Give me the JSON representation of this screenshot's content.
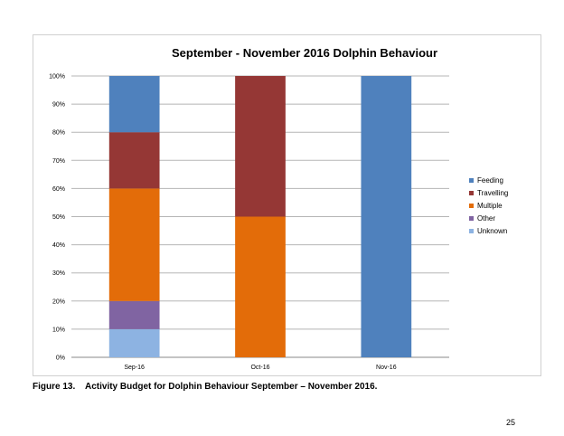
{
  "chart_data": {
    "type": "bar",
    "stacked": true,
    "title": "September - November 2016 Dolphin Behaviour",
    "categories": [
      "Sep-16",
      "Oct-16",
      "Nov-16"
    ],
    "series": [
      {
        "name": "Unknown",
        "color": "#8db3e2",
        "values": [
          10,
          0,
          0
        ]
      },
      {
        "name": "Other",
        "color": "#8064a2",
        "values": [
          10,
          0,
          0
        ]
      },
      {
        "name": "Multiple",
        "color": "#e36c09",
        "values": [
          40,
          50,
          0
        ]
      },
      {
        "name": "Travelling",
        "color": "#953735",
        "values": [
          20,
          50,
          0
        ]
      },
      {
        "name": "Feeding",
        "color": "#4f81bd",
        "values": [
          20,
          0,
          100
        ]
      }
    ],
    "ylim": [
      0,
      100
    ],
    "yticks": [
      "0%",
      "10%",
      "20%",
      "30%",
      "40%",
      "50%",
      "60%",
      "70%",
      "80%",
      "90%",
      "100%"
    ],
    "legend_order": [
      "Feeding",
      "Travelling",
      "Multiple",
      "Other",
      "Unknown"
    ],
    "legend_position": "right",
    "grid": true
  },
  "caption": {
    "number": "Figure 13.",
    "text": "Activity Budget for Dolphin Behaviour September – November 2016."
  },
  "page_number": "25"
}
